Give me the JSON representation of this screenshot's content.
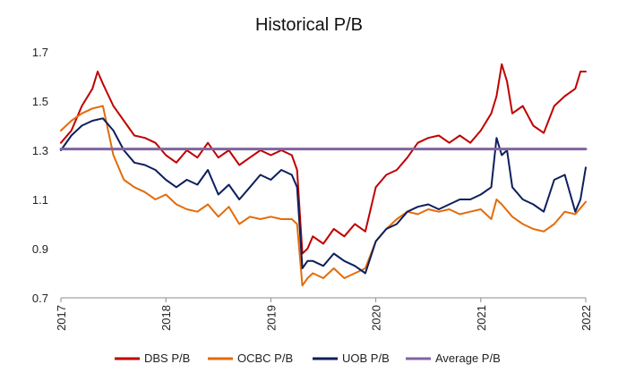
{
  "chart_data": {
    "type": "line",
    "title": "Historical P/B",
    "xlabel": "",
    "ylabel": "",
    "xlim": [
      2017,
      2022
    ],
    "ylim": [
      0.7,
      1.7
    ],
    "yticks": [
      "0.7",
      "0.9",
      "1.1",
      "1.3",
      "1.5",
      "1.7"
    ],
    "xticks": [
      "2017",
      "2018",
      "2019",
      "2020",
      "2021",
      "2022"
    ],
    "grid": false,
    "legend": "bottom",
    "series": [
      {
        "name": "DBS P/B",
        "color": "#c00000",
        "x": [
          2017.0,
          2017.1,
          2017.2,
          2017.3,
          2017.35,
          2017.4,
          2017.5,
          2017.6,
          2017.7,
          2017.8,
          2017.9,
          2018.0,
          2018.1,
          2018.2,
          2018.3,
          2018.4,
          2018.5,
          2018.6,
          2018.7,
          2018.8,
          2018.9,
          2019.0,
          2019.1,
          2019.2,
          2019.25,
          2019.3,
          2019.35,
          2019.4,
          2019.5,
          2019.6,
          2019.7,
          2019.8,
          2019.9,
          2020.0,
          2020.1,
          2020.2,
          2020.3,
          2020.4,
          2020.5,
          2020.6,
          2020.7,
          2020.8,
          2020.9,
          2021.0,
          2021.1,
          2021.15,
          2021.2,
          2021.25,
          2021.3,
          2021.4,
          2021.5,
          2021.6,
          2021.7,
          2021.8,
          2021.9,
          2021.95,
          2022.0
        ],
        "y": [
          1.33,
          1.38,
          1.48,
          1.55,
          1.62,
          1.57,
          1.48,
          1.42,
          1.36,
          1.35,
          1.33,
          1.28,
          1.25,
          1.3,
          1.27,
          1.33,
          1.27,
          1.3,
          1.24,
          1.27,
          1.3,
          1.28,
          1.3,
          1.28,
          1.22,
          0.88,
          0.9,
          0.95,
          0.92,
          0.98,
          0.95,
          1.0,
          0.97,
          1.15,
          1.2,
          1.22,
          1.27,
          1.33,
          1.35,
          1.36,
          1.33,
          1.36,
          1.33,
          1.38,
          1.45,
          1.52,
          1.65,
          1.58,
          1.45,
          1.48,
          1.4,
          1.37,
          1.48,
          1.52,
          1.55,
          1.62,
          1.62
        ]
      },
      {
        "name": "OCBC P/B",
        "color": "#e36c09",
        "x": [
          2017.0,
          2017.1,
          2017.2,
          2017.3,
          2017.4,
          2017.5,
          2017.6,
          2017.7,
          2017.8,
          2017.9,
          2018.0,
          2018.1,
          2018.2,
          2018.3,
          2018.4,
          2018.5,
          2018.6,
          2018.7,
          2018.8,
          2018.9,
          2019.0,
          2019.1,
          2019.2,
          2019.25,
          2019.3,
          2019.35,
          2019.4,
          2019.5,
          2019.6,
          2019.7,
          2019.8,
          2019.9,
          2020.0,
          2020.1,
          2020.2,
          2020.3,
          2020.4,
          2020.5,
          2020.6,
          2020.7,
          2020.8,
          2020.9,
          2021.0,
          2021.1,
          2021.15,
          2021.2,
          2021.3,
          2021.4,
          2021.5,
          2021.6,
          2021.7,
          2021.8,
          2021.9,
          2022.0
        ],
        "y": [
          1.38,
          1.42,
          1.45,
          1.47,
          1.48,
          1.28,
          1.18,
          1.15,
          1.13,
          1.1,
          1.12,
          1.08,
          1.06,
          1.05,
          1.08,
          1.03,
          1.07,
          1.0,
          1.03,
          1.02,
          1.03,
          1.02,
          1.02,
          1.0,
          0.75,
          0.78,
          0.8,
          0.78,
          0.82,
          0.78,
          0.8,
          0.82,
          0.93,
          0.98,
          1.02,
          1.05,
          1.04,
          1.06,
          1.05,
          1.06,
          1.04,
          1.05,
          1.06,
          1.02,
          1.1,
          1.08,
          1.03,
          1.0,
          0.98,
          0.97,
          1.0,
          1.05,
          1.04,
          1.09
        ]
      },
      {
        "name": "UOB P/B",
        "color": "#0d1f5c",
        "x": [
          2017.0,
          2017.1,
          2017.2,
          2017.3,
          2017.4,
          2017.5,
          2017.6,
          2017.7,
          2017.8,
          2017.9,
          2018.0,
          2018.1,
          2018.2,
          2018.3,
          2018.4,
          2018.5,
          2018.6,
          2018.7,
          2018.8,
          2018.9,
          2019.0,
          2019.1,
          2019.2,
          2019.25,
          2019.3,
          2019.35,
          2019.4,
          2019.5,
          2019.6,
          2019.7,
          2019.8,
          2019.9,
          2020.0,
          2020.1,
          2020.2,
          2020.3,
          2020.4,
          2020.5,
          2020.6,
          2020.7,
          2020.8,
          2020.9,
          2021.0,
          2021.1,
          2021.15,
          2021.2,
          2021.25,
          2021.3,
          2021.4,
          2021.5,
          2021.6,
          2021.7,
          2021.8,
          2021.9,
          2021.95,
          2022.0
        ],
        "y": [
          1.3,
          1.36,
          1.4,
          1.42,
          1.43,
          1.38,
          1.3,
          1.25,
          1.24,
          1.22,
          1.18,
          1.15,
          1.18,
          1.16,
          1.22,
          1.12,
          1.16,
          1.1,
          1.15,
          1.2,
          1.18,
          1.22,
          1.2,
          1.15,
          0.82,
          0.85,
          0.85,
          0.83,
          0.88,
          0.85,
          0.83,
          0.8,
          0.93,
          0.98,
          1.0,
          1.05,
          1.07,
          1.08,
          1.06,
          1.08,
          1.1,
          1.1,
          1.12,
          1.15,
          1.35,
          1.28,
          1.3,
          1.15,
          1.1,
          1.08,
          1.05,
          1.18,
          1.2,
          1.05,
          1.1,
          1.23
        ]
      },
      {
        "name": "Average P/B",
        "color": "#8064a2",
        "x": [
          2017.0,
          2022.0
        ],
        "y": [
          1.305,
          1.305
        ]
      }
    ]
  }
}
